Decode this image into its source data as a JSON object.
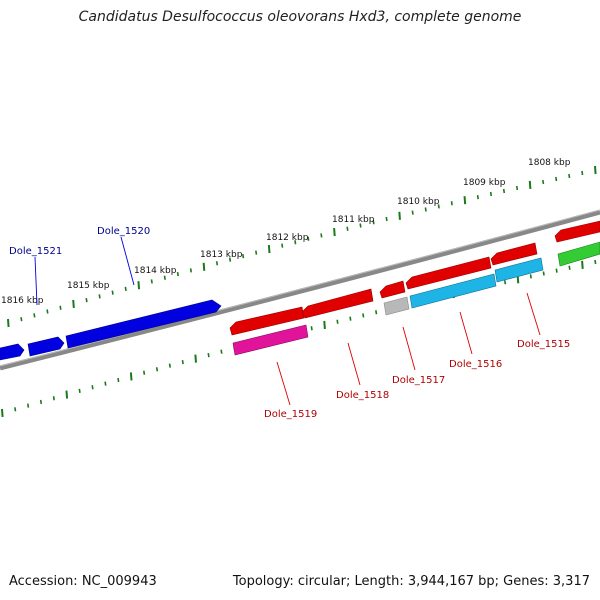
{
  "title": "Candidatus Desulfococcus oleovorans Hxd3, complete genome",
  "footer": {
    "accession": "Accession: NC_009943",
    "topology": "Topology: circular; Length: 3,944,167 bp; Genes: 3,317"
  },
  "colors": {
    "backbone": "#808080",
    "ticks": "#1a7a1a",
    "forward_gene": "#0000e0",
    "reverse_gene": "#e00000",
    "magenta_gene": "#e0139a",
    "cyan_gene": "#1fb4e6",
    "grey_gene": "#b8b8b8",
    "green_gene": "#33cc33",
    "forward_label": "#00008b",
    "reverse_label": "#b00000"
  },
  "kbp_labels": [
    "1808 kbp",
    "1809 kbp",
    "1810 kbp",
    "1811 kbp",
    "1812 kbp",
    "1813 kbp",
    "1814 kbp",
    "1815 kbp",
    "1816 kbp"
  ],
  "gene_labels": {
    "forward": [
      "Dole_1521",
      "Dole_1520"
    ],
    "reverse": [
      "Dole_1519",
      "Dole_1518",
      "Dole_1517",
      "Dole_1516",
      "Dole_1515"
    ]
  }
}
